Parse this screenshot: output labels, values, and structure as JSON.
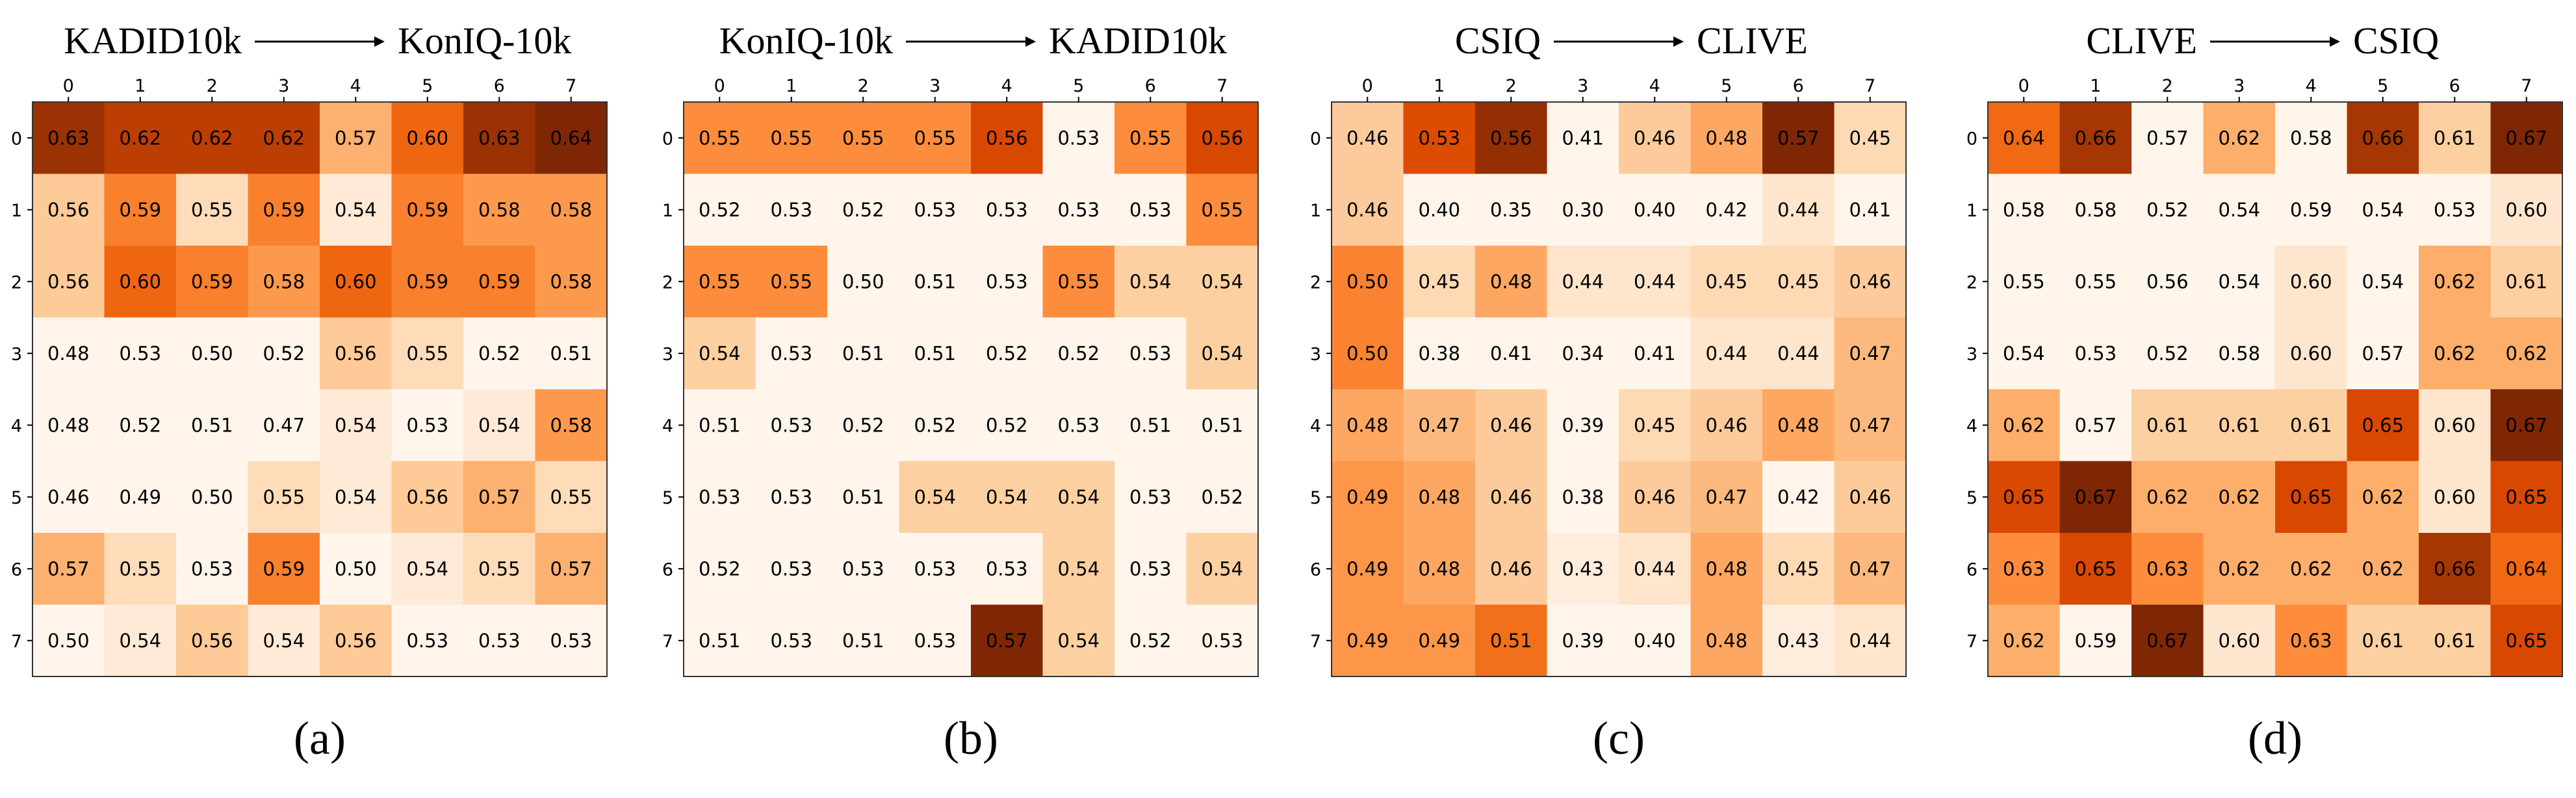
{
  "chart_data": [
    {
      "type": "heatmap",
      "source": "KADID10k",
      "target": "KonIQ-10k",
      "caption": "(a)",
      "x_ticks": [
        "0",
        "1",
        "2",
        "3",
        "4",
        "5",
        "6",
        "7"
      ],
      "y_ticks": [
        "0",
        "1",
        "2",
        "3",
        "4",
        "5",
        "6",
        "7"
      ],
      "values": [
        [
          0.63,
          0.62,
          0.62,
          0.62,
          0.57,
          0.6,
          0.63,
          0.64
        ],
        [
          0.56,
          0.59,
          0.55,
          0.59,
          0.54,
          0.59,
          0.58,
          0.58
        ],
        [
          0.56,
          0.6,
          0.59,
          0.58,
          0.6,
          0.59,
          0.59,
          0.58
        ],
        [
          0.48,
          0.53,
          0.5,
          0.52,
          0.56,
          0.55,
          0.52,
          0.51
        ],
        [
          0.48,
          0.52,
          0.51,
          0.47,
          0.54,
          0.53,
          0.54,
          0.58
        ],
        [
          0.46,
          0.49,
          0.5,
          0.55,
          0.54,
          0.56,
          0.57,
          0.55
        ],
        [
          0.57,
          0.55,
          0.53,
          0.59,
          0.5,
          0.54,
          0.55,
          0.57
        ],
        [
          0.5,
          0.54,
          0.56,
          0.54,
          0.56,
          0.53,
          0.53,
          0.53
        ]
      ],
      "color_scale": {
        "min": 0.53,
        "max": 0.64
      }
    },
    {
      "type": "heatmap",
      "source": "KonIQ-10k",
      "target": "KADID10k",
      "caption": "(b)",
      "x_ticks": [
        "0",
        "1",
        "2",
        "3",
        "4",
        "5",
        "6",
        "7"
      ],
      "y_ticks": [
        "0",
        "1",
        "2",
        "3",
        "4",
        "5",
        "6",
        "7"
      ],
      "values": [
        [
          0.55,
          0.55,
          0.55,
          0.55,
          0.56,
          0.53,
          0.55,
          0.56
        ],
        [
          0.52,
          0.53,
          0.52,
          0.53,
          0.53,
          0.53,
          0.53,
          0.55
        ],
        [
          0.55,
          0.55,
          0.5,
          0.51,
          0.53,
          0.55,
          0.54,
          0.54
        ],
        [
          0.54,
          0.53,
          0.51,
          0.51,
          0.52,
          0.52,
          0.53,
          0.54
        ],
        [
          0.51,
          0.53,
          0.52,
          0.52,
          0.52,
          0.53,
          0.51,
          0.51
        ],
        [
          0.53,
          0.53,
          0.51,
          0.54,
          0.54,
          0.54,
          0.53,
          0.52
        ],
        [
          0.52,
          0.53,
          0.53,
          0.53,
          0.53,
          0.54,
          0.53,
          0.54
        ],
        [
          0.51,
          0.53,
          0.51,
          0.53,
          0.57,
          0.54,
          0.52,
          0.53
        ]
      ],
      "color_scale": {
        "min": 0.53,
        "max": 0.57
      }
    },
    {
      "type": "heatmap",
      "source": "CSIQ",
      "target": "CLIVE",
      "caption": "(c)",
      "x_ticks": [
        "0",
        "1",
        "2",
        "3",
        "4",
        "5",
        "6",
        "7"
      ],
      "y_ticks": [
        "0",
        "1",
        "2",
        "3",
        "4",
        "5",
        "6",
        "7"
      ],
      "values": [
        [
          0.46,
          0.53,
          0.56,
          0.41,
          0.46,
          0.48,
          0.57,
          0.45
        ],
        [
          0.46,
          0.4,
          0.35,
          0.3,
          0.4,
          0.42,
          0.44,
          0.41
        ],
        [
          0.5,
          0.45,
          0.48,
          0.44,
          0.44,
          0.45,
          0.45,
          0.46
        ],
        [
          0.5,
          0.38,
          0.41,
          0.34,
          0.41,
          0.44,
          0.44,
          0.47
        ],
        [
          0.48,
          0.47,
          0.46,
          0.39,
          0.45,
          0.46,
          0.48,
          0.47
        ],
        [
          0.49,
          0.48,
          0.46,
          0.38,
          0.46,
          0.47,
          0.42,
          0.46
        ],
        [
          0.49,
          0.48,
          0.46,
          0.43,
          0.44,
          0.48,
          0.45,
          0.47
        ],
        [
          0.49,
          0.49,
          0.51,
          0.39,
          0.4,
          0.48,
          0.43,
          0.44
        ]
      ],
      "color_scale": {
        "min": 0.42,
        "max": 0.57
      }
    },
    {
      "type": "heatmap",
      "source": "CLIVE",
      "target": "CSIQ",
      "caption": "(d)",
      "x_ticks": [
        "0",
        "1",
        "2",
        "3",
        "4",
        "5",
        "6",
        "7"
      ],
      "y_ticks": [
        "0",
        "1",
        "2",
        "3",
        "4",
        "5",
        "6",
        "7"
      ],
      "values": [
        [
          0.64,
          0.66,
          0.57,
          0.62,
          0.58,
          0.66,
          0.61,
          0.67
        ],
        [
          0.58,
          0.58,
          0.52,
          0.54,
          0.59,
          0.54,
          0.53,
          0.6
        ],
        [
          0.55,
          0.55,
          0.56,
          0.54,
          0.6,
          0.54,
          0.62,
          0.61
        ],
        [
          0.54,
          0.53,
          0.52,
          0.58,
          0.6,
          0.57,
          0.62,
          0.62
        ],
        [
          0.62,
          0.57,
          0.61,
          0.61,
          0.61,
          0.65,
          0.6,
          0.67
        ],
        [
          0.65,
          0.67,
          0.62,
          0.62,
          0.65,
          0.62,
          0.6,
          0.65
        ],
        [
          0.63,
          0.65,
          0.63,
          0.62,
          0.62,
          0.62,
          0.66,
          0.64
        ],
        [
          0.62,
          0.59,
          0.67,
          0.6,
          0.63,
          0.61,
          0.61,
          0.65
        ]
      ],
      "color_scale": {
        "min": 0.59,
        "max": 0.67
      }
    }
  ]
}
